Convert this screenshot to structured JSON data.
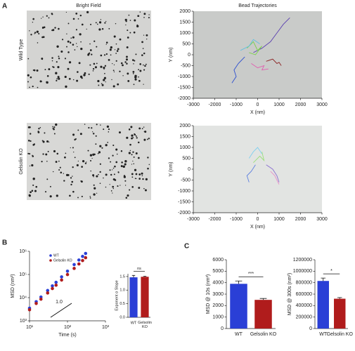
{
  "panel_labels": [
    "A",
    "B",
    "C"
  ],
  "images": {
    "title": "Bright Field",
    "rows": [
      "Wild Type",
      "Gelsolin KO"
    ]
  },
  "chart_data": [
    {
      "type": "trajectory",
      "title": "Bead Trajectories",
      "x_label": "X (nm)",
      "y_label": "Y (nm)",
      "background": "#c9cbc9",
      "xlim": [
        -3000,
        3000
      ],
      "ylim": [
        -2000,
        2000
      ],
      "xticks": [
        -3000,
        -2000,
        -1000,
        0,
        1000,
        2000,
        3000
      ],
      "yticks": [
        -2000,
        -1500,
        -1000,
        -500,
        0,
        500,
        1000,
        1500,
        2000
      ],
      "series": [
        {
          "color": "#5a3fb0",
          "x": [
            -200,
            200,
            600,
            900,
            1200,
            1500
          ],
          "y": [
            100,
            300,
            600,
            1000,
            1400,
            1700
          ]
        },
        {
          "color": "#2c4fd0",
          "x": [
            -600,
            -900,
            -1100,
            -1000,
            -1200
          ],
          "y": [
            -100,
            -400,
            -700,
            -1000,
            -1300
          ]
        },
        {
          "color": "#7bd04a",
          "x": [
            -500,
            -200,
            0,
            200,
            -100,
            -400
          ],
          "y": [
            300,
            600,
            200,
            400,
            0,
            100
          ]
        },
        {
          "color": "#8b2020",
          "x": [
            400,
            700,
            900,
            1000,
            1100
          ],
          "y": [
            -300,
            -200,
            -400,
            -350,
            -500
          ]
        },
        {
          "color": "#e060b0",
          "x": [
            -300,
            0,
            300,
            200,
            500
          ],
          "y": [
            -400,
            -600,
            -500,
            -700,
            -650
          ]
        },
        {
          "color": "#60c0e0",
          "x": [
            -800,
            -400,
            -200,
            100
          ],
          "y": [
            200,
            400,
            700,
            500
          ]
        }
      ]
    },
    {
      "type": "trajectory",
      "x_label": "X (nm)",
      "y_label": "Y (nm)",
      "background": "#e2e4e2",
      "xlim": [
        -3000,
        3000
      ],
      "ylim": [
        -2000,
        2000
      ],
      "xticks": [
        -3000,
        -2000,
        -1000,
        0,
        1000,
        2000,
        3000
      ],
      "yticks": [
        -2000,
        -1500,
        -1000,
        -500,
        0,
        500,
        1000,
        1500,
        2000
      ],
      "series": [
        {
          "color": "#8a6fd0",
          "x": [
            400,
            700,
            900,
            1000
          ],
          "y": [
            200,
            0,
            -300,
            -600
          ]
        },
        {
          "color": "#5c7fe0",
          "x": [
            -100,
            -300,
            -500,
            -400
          ],
          "y": [
            200,
            -100,
            -300,
            -600
          ]
        },
        {
          "color": "#9be07a",
          "x": [
            -200,
            100,
            300,
            200
          ],
          "y": [
            300,
            600,
            400,
            800
          ]
        },
        {
          "color": "#e890c8",
          "x": [
            600,
            800,
            900,
            1000
          ],
          "y": [
            -100,
            -300,
            -500,
            -700
          ]
        },
        {
          "color": "#80d0f0",
          "x": [
            -400,
            -200,
            0,
            200
          ],
          "y": [
            500,
            800,
            1000,
            700
          ]
        }
      ]
    },
    {
      "type": "line",
      "x_label": "Time (s)",
      "y_label": "MSD (nm²)",
      "xlog": true,
      "ylog": true,
      "xlim": [
        10,
        1000
      ],
      "ylim": [
        1000,
        1000000
      ],
      "xticks": [
        {
          "value": 10,
          "label": "10¹"
        },
        {
          "value": 100,
          "label": "10²"
        },
        {
          "value": 1000,
          "label": "10³"
        }
      ],
      "yticks": [
        {
          "value": 1000,
          "label": "10³"
        },
        {
          "value": 10000,
          "label": "10⁴"
        },
        {
          "value": 100000,
          "label": "10⁵"
        },
        {
          "value": 1000000,
          "label": "10⁶"
        }
      ],
      "x": [
        10,
        15,
        20,
        30,
        40,
        50,
        70,
        100,
        150,
        200,
        250,
        300
      ],
      "series": [
        {
          "name": "WT",
          "color": "#2a3fd6",
          "values": [
            3500,
            6700,
            10600,
            20300,
            32200,
            45900,
            78800,
            139000,
            267000,
            422000,
            604000,
            808000
          ]
        },
        {
          "name": "Gelsolin KO",
          "color": "#b01c1c",
          "values": [
            3000,
            5600,
            8600,
            15900,
            24700,
            34500,
            57600,
            99300,
            183000,
            285000,
            399000,
            530000
          ]
        }
      ],
      "legend": "upper left",
      "annotation": "1.0"
    },
    {
      "type": "bar",
      "y_label": "Exponent α Slope",
      "categories": [
        "WT",
        "Gelsolin KO"
      ],
      "values": [
        1.47,
        1.49
      ],
      "errors": [
        0.07,
        0.02
      ],
      "colors": [
        "#2a3fd6",
        "#b01c1c"
      ],
      "ylim": [
        0,
        1.6
      ],
      "yticks": [
        {
          "value": 0,
          "label": "0.0"
        },
        {
          "value": 0.5,
          "label": "0.5"
        },
        {
          "value": 1,
          "label": "1.0"
        },
        {
          "value": 1.5,
          "label": "1.5"
        }
      ],
      "annotation": "ns"
    },
    {
      "type": "bar",
      "y_label": "MSD @ 10s (nm²)",
      "categories": [
        "WT",
        "Gelsolin KO"
      ],
      "values": [
        3900,
        2500
      ],
      "errors": [
        250,
        120
      ],
      "colors": [
        "#2a3fd6",
        "#b01c1c"
      ],
      "ylim": [
        0,
        6000
      ],
      "yticks": [
        0,
        1000,
        2000,
        3000,
        4000,
        5000,
        6000
      ],
      "annotation": "***"
    },
    {
      "type": "bar",
      "y_label": "MSD @ 300s (nm²)",
      "categories": [
        "WT",
        "Gelsolin KO"
      ],
      "values": [
        830000,
        520000
      ],
      "errors": [
        50000,
        20000
      ],
      "colors": [
        "#2a3fd6",
        "#b01c1c"
      ],
      "ylim": [
        0,
        1200000
      ],
      "yticks": [
        0,
        200000,
        400000,
        600000,
        800000,
        1000000,
        1200000
      ],
      "annotation": "*"
    }
  ]
}
